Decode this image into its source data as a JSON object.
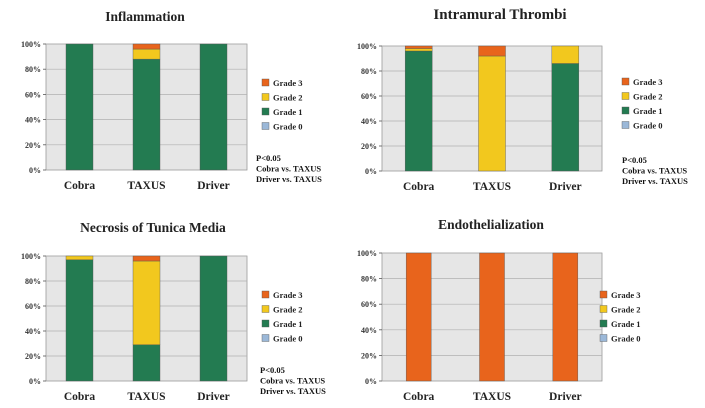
{
  "colors": {
    "Grade 3": "#e8641c",
    "Grade 2": "#f2c81e",
    "Grade 1": "#237b51",
    "Grade 0": "#9bb8d8",
    "plot_bg": "#e6e6e6",
    "grid": "#b0b0b0"
  },
  "chart_data": [
    {
      "type": "bar",
      "stacked": true,
      "title": "Inflammation",
      "categories": [
        "Cobra",
        "TAXUS",
        "Driver"
      ],
      "series": [
        {
          "name": "Grade 0",
          "values": [
            0,
            0,
            0
          ]
        },
        {
          "name": "Grade 1",
          "values": [
            100,
            88,
            100
          ]
        },
        {
          "name": "Grade 2",
          "values": [
            0,
            8,
            0
          ]
        },
        {
          "name": "Grade 3",
          "values": [
            0,
            4,
            0
          ]
        }
      ],
      "legend_order": [
        "Grade 3",
        "Grade 2",
        "Grade 1",
        "Grade 0"
      ],
      "y_ticks": [
        "0%",
        "20%",
        "40%",
        "60%",
        "80%",
        "100%"
      ],
      "ylim": [
        0,
        100
      ],
      "grid": true,
      "legend": "right",
      "annotation": [
        "P<0.05",
        "Cobra vs. TAXUS",
        "Driver vs. TAXUS"
      ]
    },
    {
      "type": "bar",
      "stacked": true,
      "title": "Intramural Thrombi",
      "categories": [
        "Cobra",
        "TAXUS",
        "Driver"
      ],
      "series": [
        {
          "name": "Grade 0",
          "values": [
            0,
            0,
            0
          ]
        },
        {
          "name": "Grade 1",
          "values": [
            96,
            0,
            86
          ]
        },
        {
          "name": "Grade 2",
          "values": [
            2,
            92,
            14
          ]
        },
        {
          "name": "Grade 3",
          "values": [
            2,
            8,
            0
          ]
        }
      ],
      "legend_order": [
        "Grade 3",
        "Grade 2",
        "Grade 1",
        "Grade 0"
      ],
      "y_ticks": [
        "0%",
        "20%",
        "40%",
        "60%",
        "80%",
        "100%"
      ],
      "ylim": [
        0,
        100
      ],
      "grid": true,
      "legend": "right",
      "annotation": [
        "P<0.05",
        "Cobra vs. TAXUS",
        "Driver vs. TAXUS"
      ]
    },
    {
      "type": "bar",
      "stacked": true,
      "title": "Necrosis of Tunica Media",
      "categories": [
        "Cobra",
        "TAXUS",
        "Driver"
      ],
      "series": [
        {
          "name": "Grade 0",
          "values": [
            0,
            0,
            0
          ]
        },
        {
          "name": "Grade 1",
          "values": [
            97,
            29,
            100
          ]
        },
        {
          "name": "Grade 2",
          "values": [
            3,
            67,
            0
          ]
        },
        {
          "name": "Grade 3",
          "values": [
            0,
            4,
            0
          ]
        }
      ],
      "legend_order": [
        "Grade 3",
        "Grade 2",
        "Grade 1",
        "Grade 0"
      ],
      "y_ticks": [
        "0%",
        "20%",
        "40%",
        "60%",
        "80%",
        "100%"
      ],
      "ylim": [
        0,
        100
      ],
      "grid": true,
      "legend": "right",
      "annotation": [
        "P<0.05",
        "Cobra vs. TAXUS",
        "Driver vs. TAXUS"
      ]
    },
    {
      "type": "bar",
      "stacked": true,
      "title": "Endothelialization",
      "categories": [
        "Cobra",
        "TAXUS",
        "Driver"
      ],
      "series": [
        {
          "name": "Grade 0",
          "values": [
            0,
            0,
            0
          ]
        },
        {
          "name": "Grade 1",
          "values": [
            0,
            0,
            0
          ]
        },
        {
          "name": "Grade 2",
          "values": [
            0,
            0,
            0
          ]
        },
        {
          "name": "Grade 3",
          "values": [
            100,
            100,
            100
          ]
        }
      ],
      "legend_order": [
        "Grade 3",
        "Grade 2",
        "Grade 1",
        "Grade 0"
      ],
      "y_ticks": [
        "0%",
        "20%",
        "40%",
        "60%",
        "80%",
        "100%"
      ],
      "ylim": [
        0,
        100
      ],
      "grid": true,
      "legend": "right",
      "annotation": []
    }
  ]
}
